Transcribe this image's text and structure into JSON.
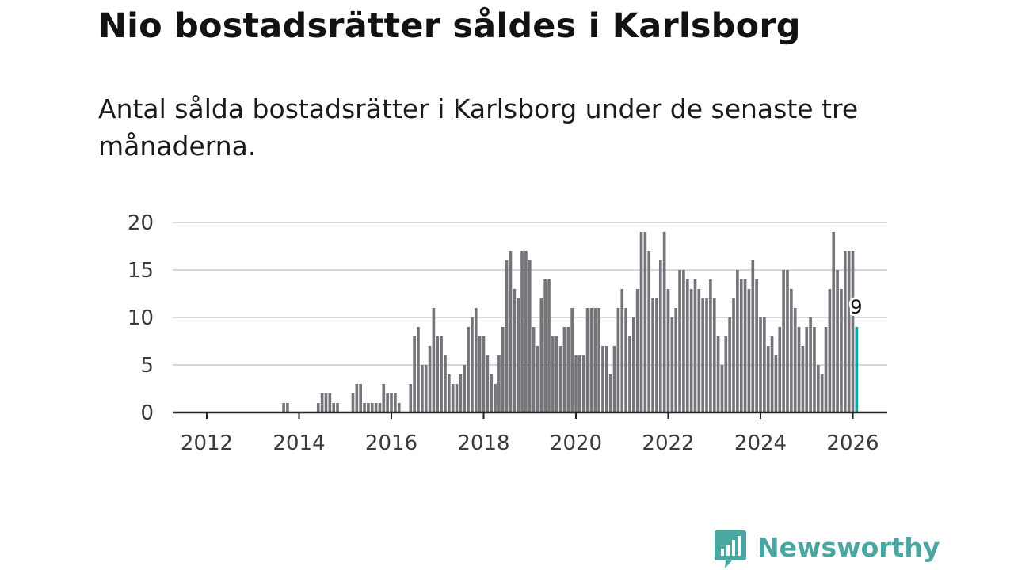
{
  "title": "Nio bostadsrätter såldes i Karlsborg",
  "subtitle": "Antal sålda bostadsrätter i Karlsborg under de senaste tre månaderna.",
  "brand": {
    "name": "Newsworthy",
    "color": "#4aa6a1"
  },
  "colors": {
    "bar": "#74747a",
    "highlight": "#16a09a",
    "grid": "#d9d9d9",
    "axis": "#222222"
  },
  "chart_data": {
    "type": "bar",
    "title": "Nio bostadsrätter såldes i Karlsborg",
    "xlabel": "",
    "ylabel": "",
    "ylim": [
      0,
      20
    ],
    "yticks": [
      0,
      5,
      10,
      15,
      20
    ],
    "xticks": [
      "2012",
      "2014",
      "2016",
      "2018",
      "2020",
      "2022",
      "2024",
      "2026"
    ],
    "x_start": "2012-01",
    "x_end": "2026-01",
    "highlight": {
      "period": "2026-01",
      "value": 9,
      "label": "9"
    },
    "series": [
      {
        "name": "Antal sålda bostadsrätter",
        "values": [
          0,
          0,
          0,
          0,
          0,
          0,
          0,
          0,
          0,
          0,
          0,
          0,
          0,
          0,
          0,
          0,
          0,
          0,
          0,
          0,
          1,
          1,
          0,
          0,
          0,
          0,
          0,
          0,
          0,
          1,
          2,
          2,
          2,
          1,
          1,
          0,
          0,
          0,
          2,
          3,
          3,
          1,
          1,
          1,
          1,
          1,
          3,
          2,
          2,
          2,
          1,
          0,
          0,
          3,
          8,
          9,
          5,
          5,
          7,
          11,
          8,
          8,
          6,
          4,
          3,
          3,
          4,
          5,
          9,
          10,
          11,
          8,
          8,
          6,
          4,
          3,
          6,
          9,
          16,
          17,
          13,
          12,
          17,
          17,
          16,
          9,
          7,
          12,
          14,
          14,
          8,
          8,
          7,
          9,
          9,
          11,
          6,
          6,
          6,
          11,
          11,
          11,
          11,
          7,
          7,
          4,
          7,
          11,
          13,
          11,
          8,
          10,
          13,
          19,
          19,
          17,
          12,
          12,
          16,
          19,
          13,
          10,
          11,
          15,
          15,
          14,
          13,
          14,
          13,
          12,
          12,
          14,
          12,
          8,
          5,
          8,
          10,
          12,
          15,
          14,
          14,
          13,
          16,
          14,
          10,
          10,
          7,
          8,
          6,
          9,
          15,
          15,
          13,
          11,
          9,
          7,
          9,
          10,
          9,
          5,
          4,
          9,
          13,
          19,
          15,
          13,
          17,
          17,
          17,
          9
        ]
      }
    ]
  }
}
